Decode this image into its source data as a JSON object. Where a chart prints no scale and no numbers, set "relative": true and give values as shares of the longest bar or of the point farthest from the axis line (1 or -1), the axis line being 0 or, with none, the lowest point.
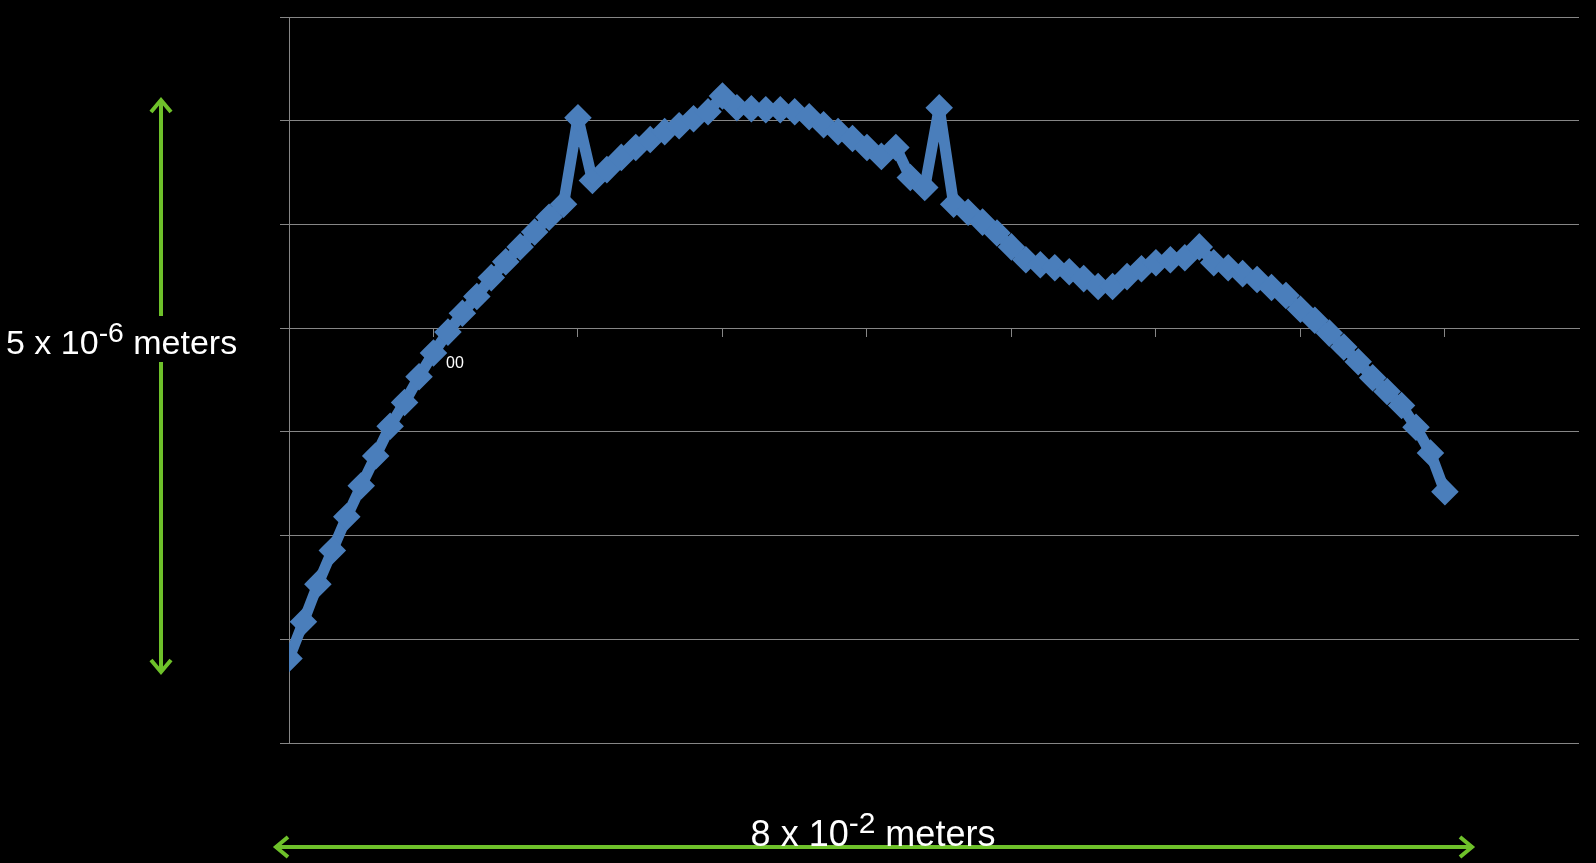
{
  "chart_data": {
    "type": "line",
    "relative": true,
    "color": "#4a7ebb",
    "marker": "diamond",
    "line_style": "solid",
    "grid": "y",
    "legend": false,
    "tick_labels": false,
    "xlabel": "8 x 10$^{-2}$ meters",
    "ylabel": "5 x 10$^{-6}$ meters",
    "annotations": [
      "00"
    ],
    "categories": [
      null,
      null,
      null,
      null,
      null,
      null,
      null,
      null,
      null,
      null,
      null,
      null,
      null,
      null,
      null,
      null,
      null,
      null,
      null,
      null,
      null,
      null,
      null,
      null,
      null,
      null,
      null,
      null,
      null,
      null,
      null,
      null,
      null,
      null,
      null,
      null,
      null,
      null,
      null,
      null,
      null,
      null,
      null,
      null,
      null,
      null,
      null,
      null,
      null,
      null,
      null,
      null,
      null,
      null,
      null,
      null,
      null,
      null,
      null,
      null,
      null,
      null,
      null,
      null,
      null,
      null,
      null,
      null,
      null,
      null,
      null,
      null,
      null,
      null,
      null,
      null,
      null,
      null,
      null,
      null,
      null
    ],
    "values": [
      -1,
      -0.889,
      -0.775,
      -0.673,
      -0.571,
      -0.477,
      -0.387,
      -0.297,
      -0.225,
      -0.147,
      -0.075,
      -0.012,
      0.045,
      0.096,
      0.153,
      0.201,
      0.246,
      0.291,
      0.336,
      0.375,
      0.637,
      0.447,
      0.48,
      0.517,
      0.547,
      0.571,
      0.595,
      0.613,
      0.634,
      0.655,
      0.703,
      0.667,
      0.664,
      0.661,
      0.661,
      0.655,
      0.64,
      0.616,
      0.595,
      0.574,
      0.547,
      0.52,
      0.547,
      0.456,
      0.426,
      0.667,
      0.375,
      0.351,
      0.321,
      0.288,
      0.246,
      0.207,
      0.192,
      0.183,
      0.171,
      0.15,
      0.126,
      0.126,
      0.156,
      0.18,
      0.198,
      0.207,
      0.213,
      0.246,
      0.198,
      0.183,
      0.165,
      0.147,
      0.123,
      0.099,
      0.057,
      0.024,
      -0.015,
      -0.057,
      -0.102,
      -0.15,
      -0.192,
      -0.234,
      -0.3,
      -0.378,
      -0.495
    ]
  }
}
